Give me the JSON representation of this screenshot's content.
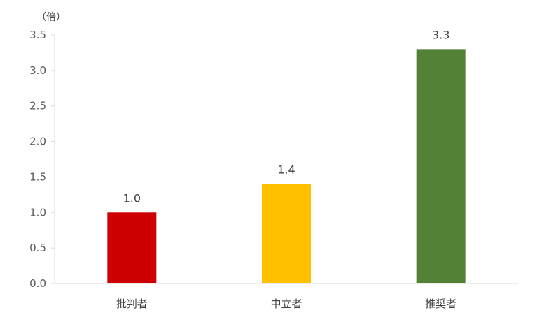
{
  "chart_data": {
    "type": "bar",
    "unit_label": "（倍）",
    "categories": [
      "批判者",
      "中立者",
      "推奨者"
    ],
    "values": [
      1.0,
      1.4,
      3.3
    ],
    "value_labels": [
      "1.0",
      "1.4",
      "3.3"
    ],
    "colors": [
      "#cc0000",
      "#ffc000",
      "#538135"
    ],
    "ylim": [
      0,
      3.5
    ],
    "yticks": [
      "0.0",
      "0.5",
      "1.0",
      "1.5",
      "2.0",
      "2.5",
      "3.0",
      "3.5"
    ],
    "title": "",
    "xlabel": "",
    "ylabel": "",
    "grid": false,
    "legend": "none"
  }
}
